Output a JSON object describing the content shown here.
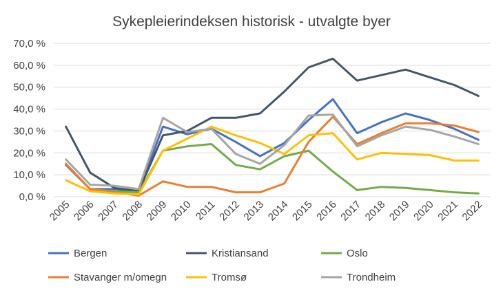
{
  "chart_data": {
    "type": "line",
    "title": "Sykepleierindeksen historisk - utvalgte byer",
    "xlabel": "",
    "ylabel": "",
    "categories": [
      "2005",
      "2006",
      "2007",
      "2008",
      "2009",
      "2010",
      "2011",
      "2012",
      "2013",
      "2014",
      "2015",
      "2016",
      "2017",
      "2018",
      "2019",
      "2020",
      "2021",
      "2022"
    ],
    "yticks": [
      "0,0 %",
      "10,0 %",
      "20,0 %",
      "30,0 %",
      "40,0 %",
      "50,0 %",
      "60,0 %",
      "70,0 %"
    ],
    "ylim": [
      0,
      70
    ],
    "grid": true,
    "legend_position": "bottom",
    "series": [
      {
        "name": "Bergen",
        "color": "#4472C4",
        "values": [
          14.5,
          3.5,
          3.5,
          2.5,
          32,
          28.5,
          31,
          25,
          18.5,
          24.5,
          35,
          44.5,
          29,
          34,
          38,
          35,
          31,
          26
        ]
      },
      {
        "name": "Kristiansand",
        "color": "#44546A",
        "values": [
          32,
          11,
          4,
          2.5,
          28,
          30,
          36,
          36,
          38,
          48,
          59,
          63,
          53,
          55.5,
          58,
          54.5,
          51,
          46
        ]
      },
      {
        "name": "Oslo",
        "color": "#70AD47",
        "values": [
          15,
          3.5,
          2.5,
          2,
          21,
          23,
          24,
          14.5,
          12.5,
          18.5,
          21,
          11.5,
          3,
          4.5,
          4,
          3,
          2,
          1.5
        ]
      },
      {
        "name": "Stavanger m/omegn",
        "color": "#ED7D31",
        "values": [
          15,
          3.5,
          2,
          0.5,
          7,
          4.5,
          4.5,
          2,
          2,
          6,
          25,
          36.5,
          24,
          29,
          33.5,
          33.5,
          32.5,
          29.5
        ]
      },
      {
        "name": "Tromsø",
        "color": "#FFC000",
        "values": [
          7.5,
          2.5,
          1.5,
          1,
          21,
          26.5,
          32,
          28,
          24.5,
          19.5,
          28,
          29,
          17,
          20,
          19.5,
          19,
          16.5,
          16.5
        ]
      },
      {
        "name": "Trondheim",
        "color": "#A5A5A5",
        "values": [
          17,
          5.5,
          5,
          3.5,
          36,
          29.5,
          31,
          19.5,
          15,
          23.5,
          37,
          37.5,
          23,
          28,
          32,
          30.5,
          27.5,
          24
        ]
      }
    ]
  }
}
